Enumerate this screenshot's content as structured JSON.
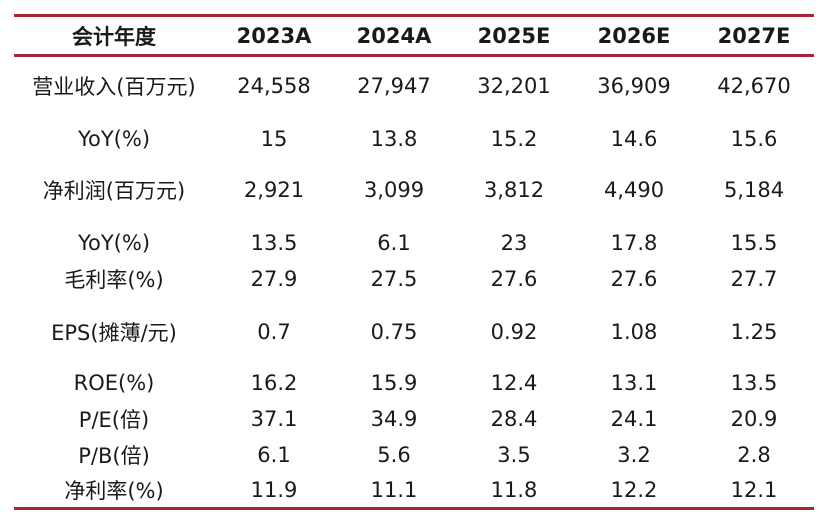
{
  "colors": {
    "rule": "#a5243a",
    "text": "#1a1a1a",
    "background": "#ffffff"
  },
  "table": {
    "header": [
      "会计年度",
      "2023A",
      "2024A",
      "2025E",
      "2026E",
      "2027E"
    ],
    "rows": [
      [
        "营业收入(百万元)",
        "24,558",
        "27,947",
        "32,201",
        "36,909",
        "42,670"
      ],
      [
        "YoY(%)",
        "15",
        "13.8",
        "15.2",
        "14.6",
        "15.6"
      ],
      [
        "净利润(百万元)",
        "2,921",
        "3,099",
        "3,812",
        "4,490",
        "5,184"
      ],
      [
        "YoY(%)",
        "13.5",
        "6.1",
        "23",
        "17.8",
        "15.5"
      ],
      [
        "毛利率(%)",
        "27.9",
        "27.5",
        "27.6",
        "27.6",
        "27.7"
      ],
      [
        "EPS(摊薄/元)",
        "0.7",
        "0.75",
        "0.92",
        "1.08",
        "1.25"
      ],
      [
        "ROE(%)",
        "16.2",
        "15.9",
        "12.4",
        "13.1",
        "13.5"
      ],
      [
        "P/E(倍)",
        "37.1",
        "34.9",
        "28.4",
        "24.1",
        "20.9"
      ],
      [
        "P/B(倍)",
        "6.1",
        "5.6",
        "3.5",
        "3.2",
        "2.8"
      ],
      [
        "净利率(%)",
        "11.9",
        "11.1",
        "11.8",
        "12.2",
        "12.1"
      ]
    ]
  }
}
